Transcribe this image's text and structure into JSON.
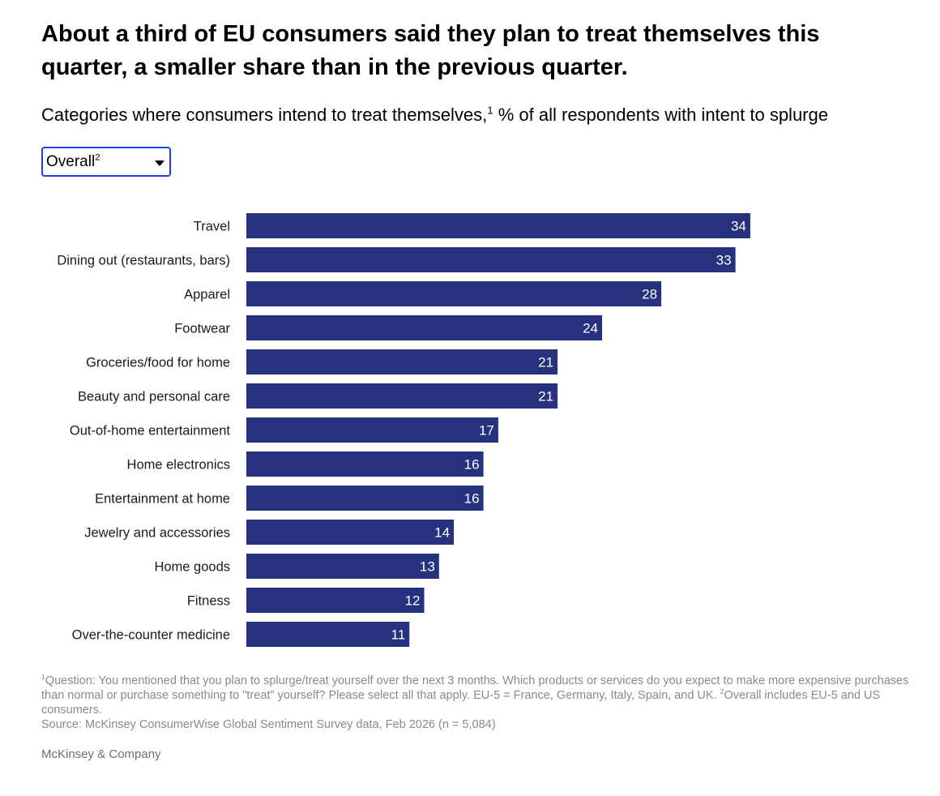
{
  "title": "About a third of EU consumers said they plan to treat themselves this quarter, a smaller share than in the previous quarter.",
  "subtitle": {
    "text_before": "Categories where consumers intend to treat themselves,",
    "footnote_mark": "1",
    "text_after": " % of all respondents with intent to splurge"
  },
  "dropdown": {
    "selected": "Overall",
    "footnote_mark": "2",
    "icon": "caret-down-icon"
  },
  "colors": {
    "bar": "#27327f",
    "bar_label": "#ffffff",
    "dropdown_border": "#1f40e6",
    "footnote_text": "#8a8a8a"
  },
  "chart_data": {
    "type": "bar",
    "orientation": "horizontal",
    "categories": [
      "Travel",
      "Dining out (restaurants, bars)",
      "Apparel",
      "Footwear",
      "Groceries/food for home",
      "Beauty and personal care",
      "Out-of-home entertainment",
      "Home electronics",
      "Entertainment at home",
      "Jewelry and accessories",
      "Home goods",
      "Fitness",
      "Over-the-counter medicine"
    ],
    "values": [
      34,
      33,
      28,
      24,
      21,
      21,
      17,
      16,
      16,
      14,
      13,
      12,
      11
    ],
    "data_labels": "inside-end",
    "grid": false,
    "legend": "none"
  },
  "footnotes": {
    "note1_mark": "1",
    "note1_text": "Question: You mentioned that you plan to splurge/treat yourself over the next 3 months. Which products or services do you expect to make more expensive purchases than normal or purchase something to \"treat\" yourself? Please select all that apply. EU-5 = France, Germany, Italy, Spain, and UK. ",
    "note2_mark": "2",
    "note2_text": "Overall includes EU-5 and US consumers.",
    "source": "Source: McKinsey ConsumerWise Global Sentiment Survey data, Feb 2026 (n = 5,084)"
  },
  "brand": "McKinsey & Company"
}
